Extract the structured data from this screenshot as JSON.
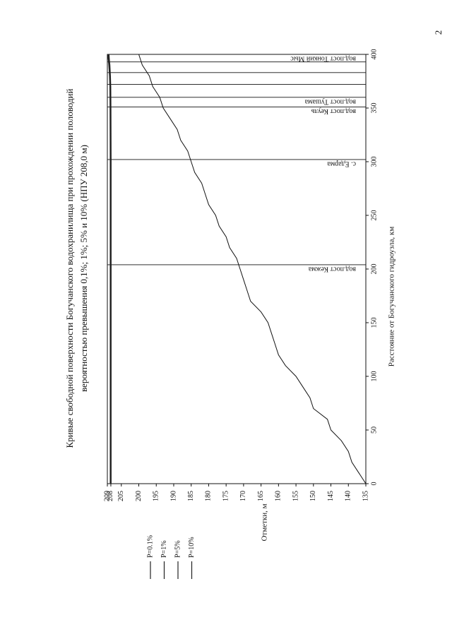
{
  "page_number": "2",
  "chart_data": {
    "type": "line",
    "title": "Кривые свободной поверхности Богучанского водохранилища при прохождении половодий",
    "subtitle": "вероятностью превышения 0,1%; 1%; 5% и 10%  (НПУ 208,0 м)",
    "x_label": "Расстояние от Богучанского гидроузла, км",
    "y_label": "Отметки, м",
    "x": [
      0,
      100,
      200,
      300,
      350,
      370,
      380,
      390,
      395,
      400
    ],
    "series": [
      {
        "name": "P=0.1%",
        "color": "#222222",
        "values": [
          208.2,
          208.2,
          208.2,
          208.2,
          208.25,
          208.3,
          208.4,
          208.6,
          208.75,
          208.9
        ]
      },
      {
        "name": "P=1%",
        "color": "#222222",
        "values": [
          208.1,
          208.1,
          208.1,
          208.1,
          208.15,
          208.2,
          208.3,
          208.45,
          208.6,
          208.75
        ]
      },
      {
        "name": "P=5%",
        "color": "#222222",
        "values": [
          208.0,
          208.0,
          208.0,
          208.0,
          208.05,
          208.1,
          208.2,
          208.35,
          208.5,
          208.6
        ]
      },
      {
        "name": "P=10%",
        "color": "#222222",
        "values": [
          207.9,
          207.9,
          207.9,
          207.9,
          207.95,
          208.0,
          208.1,
          208.25,
          208.4,
          208.5
        ]
      }
    ],
    "bed_profile": {
      "x": [
        0,
        10,
        20,
        30,
        40,
        50,
        60,
        70,
        80,
        90,
        100,
        110,
        120,
        130,
        140,
        150,
        160,
        170,
        180,
        190,
        200,
        210,
        220,
        230,
        240,
        250,
        260,
        270,
        280,
        290,
        300,
        310,
        320,
        330,
        340,
        350,
        360,
        370,
        380,
        390,
        400
      ],
      "values": [
        135,
        137,
        139,
        140,
        142,
        145,
        146,
        150,
        151,
        153,
        155,
        158,
        160,
        161,
        162,
        163,
        165,
        168,
        169,
        170,
        171,
        172,
        174,
        175,
        177,
        178,
        180,
        181,
        182,
        184,
        185,
        186,
        188,
        189,
        191,
        193,
        194,
        196,
        197,
        199,
        200
      ]
    },
    "stations": {
      "x": [
        204,
        302,
        351,
        360,
        372,
        383,
        393,
        400
      ],
      "labels": [
        "вод.пост Кежма",
        "с. Едарма",
        "вод.пост Кеуль",
        "вод.пост Тушама",
        null,
        null,
        null,
        "вод.пост Тонкий Мыс"
      ]
    },
    "xlim": [
      0,
      400
    ],
    "xticks": [
      0,
      50,
      100,
      150,
      200,
      250,
      300,
      350,
      400
    ],
    "ylim": [
      135,
      209
    ],
    "yticks": [
      135,
      140,
      145,
      150,
      155,
      160,
      165,
      170,
      175,
      180,
      185,
      190,
      195,
      200,
      205,
      208,
      209
    ]
  }
}
